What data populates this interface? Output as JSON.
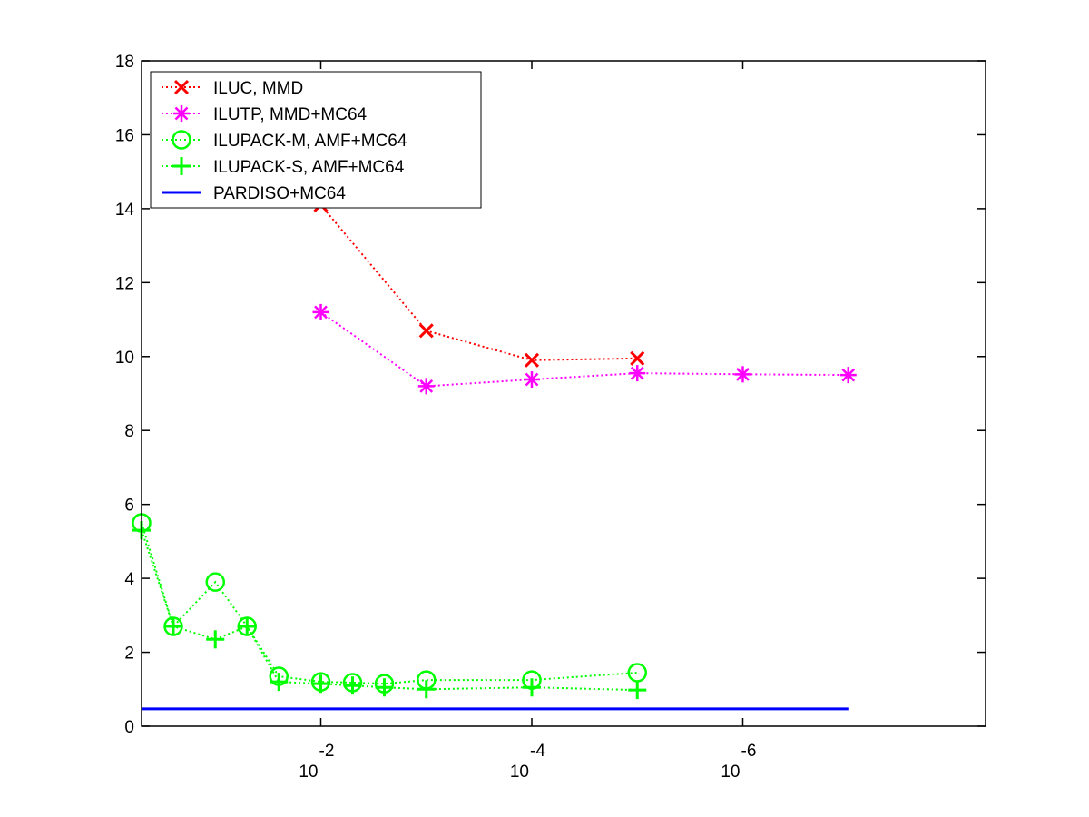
{
  "chart_data": {
    "type": "line",
    "x_scale": "log-reversed",
    "xlim": [
      0.5,
      5e-09
    ],
    "ylim": [
      0,
      18
    ],
    "y_ticks": [
      0,
      2,
      4,
      6,
      8,
      10,
      12,
      14,
      16,
      18
    ],
    "x_ticks": [
      {
        "value": 0.01,
        "base": "10",
        "exponent": "-2"
      },
      {
        "value": 0.0001,
        "base": "10",
        "exponent": "-4"
      },
      {
        "value": 1e-06,
        "base": "10",
        "exponent": "-6"
      }
    ],
    "grid": false,
    "legend_position": "top-left",
    "series": [
      {
        "name": "ILUC, MMD",
        "color": "#ff0000",
        "marker": "x",
        "line": "dotted",
        "points": [
          [
            0.01,
            14.1
          ],
          [
            0.001,
            10.7
          ],
          [
            0.0001,
            9.9
          ],
          [
            1e-05,
            9.95
          ]
        ]
      },
      {
        "name": "ILUTP, MMD+MC64",
        "color": "#ff00ff",
        "marker": "asterisk",
        "line": "dotted",
        "points": [
          [
            0.01,
            11.2
          ],
          [
            0.001,
            9.2
          ],
          [
            0.0001,
            9.38
          ],
          [
            1e-05,
            9.55
          ],
          [
            1e-06,
            9.52
          ],
          [
            1e-07,
            9.5
          ]
        ]
      },
      {
        "name": "ILUPACK-M, AMF+MC64",
        "color": "#00ff00",
        "marker": "circle",
        "line": "dotted",
        "points": [
          [
            0.5,
            5.5
          ],
          [
            0.25,
            2.7
          ],
          [
            0.1,
            3.9
          ],
          [
            0.05,
            2.7
          ],
          [
            0.025,
            1.35
          ],
          [
            0.01,
            1.2
          ],
          [
            0.005,
            1.18
          ],
          [
            0.0025,
            1.15
          ],
          [
            0.001,
            1.25
          ],
          [
            0.0001,
            1.25
          ],
          [
            1e-05,
            1.45
          ]
        ]
      },
      {
        "name": "ILUPACK-S, AMF+MC64",
        "color": "#00ff00",
        "marker": "plus",
        "line": "dotted",
        "points": [
          [
            0.5,
            5.3
          ],
          [
            0.25,
            2.7
          ],
          [
            0.1,
            2.35
          ],
          [
            0.05,
            2.7
          ],
          [
            0.025,
            1.2
          ],
          [
            0.01,
            1.15
          ],
          [
            0.005,
            1.1
          ],
          [
            0.0025,
            1.05
          ],
          [
            0.001,
            1.0
          ],
          [
            0.0001,
            1.05
          ],
          [
            1e-05,
            0.98
          ]
        ]
      },
      {
        "name": "PARDISO+MC64",
        "color": "#0000ff",
        "marker": "none",
        "line": "solid",
        "points": [
          [
            0.5,
            0.47
          ],
          [
            1e-07,
            0.47
          ]
        ]
      }
    ]
  }
}
